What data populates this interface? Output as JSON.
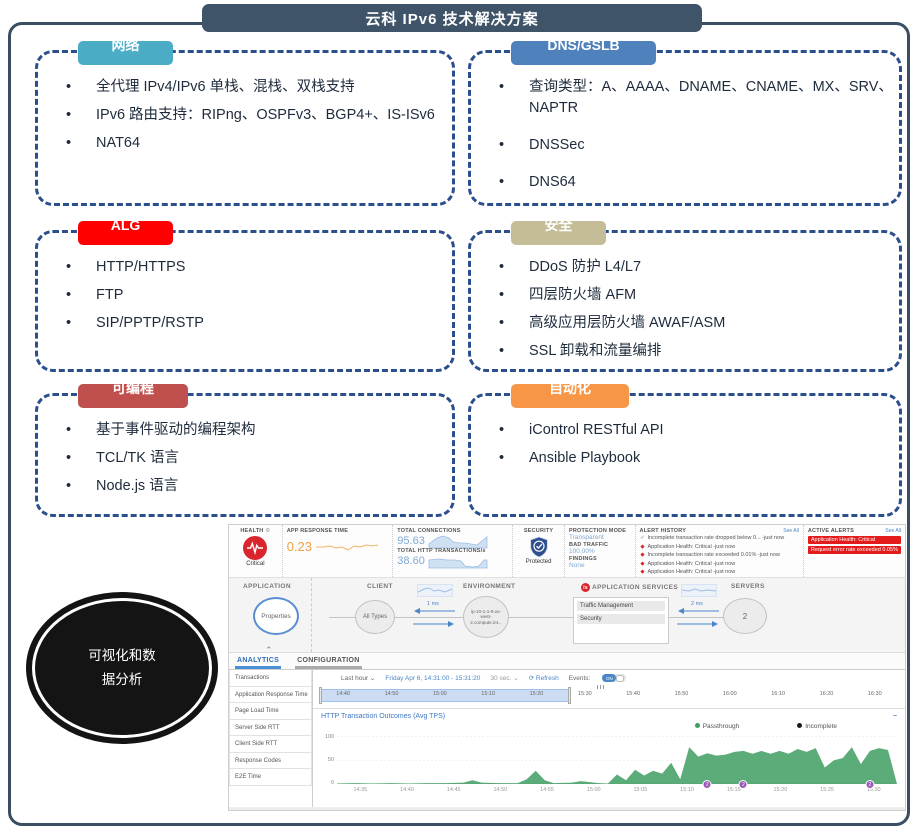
{
  "slide": {
    "title": "云科 IPv6 技术解决方案"
  },
  "boxes": [
    {
      "label": "网络",
      "color": "#4BACC6",
      "items": [
        "全代理 IPv4/IPv6 单栈、混栈、双栈支持",
        "IPv6 路由支持：RIPng、OSPFv3、BGP4+、IS-ISv6",
        "NAT64"
      ]
    },
    {
      "label": "DNS/GSLB",
      "color": "#4F81BD",
      "items": [
        "查询类型：A、AAAA、DNAME、CNAME、MX、SRV、NAPTR",
        "DNSSec",
        "DNS64"
      ]
    },
    {
      "label": "ALG",
      "color": "#FF0000",
      "items": [
        "HTTP/HTTPS",
        "FTP",
        "SIP/PPTP/RSTP"
      ]
    },
    {
      "label": "安全",
      "color": "#C4BD97",
      "items": [
        "DDoS 防护 L4/L7",
        "四层防火墙 AFM",
        "高级应用层防火墙 AWAF/ASM",
        "SSL 卸载和流量编排"
      ]
    },
    {
      "label": "可编程",
      "color": "#C0504D",
      "items": [
        "基于事件驱动的编程架构",
        "TCL/TK 语言",
        "Node.js 语言"
      ]
    },
    {
      "label": "自动化",
      "color": "#F79646",
      "items": [
        "iControl RESTful API",
        "Ansible Playbook"
      ]
    }
  ],
  "ellipse": {
    "text": "可视化和数据分析"
  },
  "dashboard": {
    "health": {
      "label": "HEALTH",
      "status": "Critical"
    },
    "app_response_time": {
      "label": "APP RESPONSE TIME",
      "value": "0.23"
    },
    "connections": {
      "label": "TOTAL CONNECTIONS",
      "value": "95.63"
    },
    "http_tps": {
      "label": "TOTAL HTTP TRANSACTIONS/s",
      "value": "38.60"
    },
    "security": {
      "label": "SECURITY",
      "status": "Protected"
    },
    "protection": {
      "mode_label": "PROTECTION MODE",
      "mode": "Transparent",
      "bad_traffic_label": "BAD TRAFFIC",
      "bad_traffic": "100.00%",
      "findings_label": "FINDINGS",
      "findings": "None"
    },
    "alert_history": {
      "title": "ALERT HISTORY",
      "see_all": "See All",
      "items": [
        {
          "icon": "✓",
          "cls": "ok",
          "text": "Incomplete transaction rate dropped below 0... -just now"
        },
        {
          "icon": "◆",
          "cls": "bad",
          "text": "Application Health: Critical -just now"
        },
        {
          "icon": "◆",
          "cls": "bad",
          "text": "Incomplete transaction rate exceeded 0.01% -just now"
        },
        {
          "icon": "◆",
          "cls": "bad",
          "text": "Application Health: Critical -just now"
        },
        {
          "icon": "◆",
          "cls": "bad",
          "text": "Application Health: Critical -just now"
        }
      ]
    },
    "active_alerts": {
      "title": "ACTIVE ALERTS",
      "see_all": "See All",
      "items": [
        "Application Health: Critical",
        "Request error rate exceeded 0.05%"
      ]
    },
    "topology": {
      "application": {
        "header": "APPLICATION",
        "node": "Properties"
      },
      "client": {
        "header": "CLIENT",
        "node": "All Types"
      },
      "latency_client": "1 ms",
      "environment": {
        "header": "ENVIRONMENT",
        "node": "ip-10-1-1-9.us-west-2.compute.int..."
      },
      "services": {
        "header": "APPLICATION SERVICES",
        "logo": "f5",
        "rows": [
          "Traffic Management",
          "Security"
        ]
      },
      "latency_server": "2 ms",
      "servers": {
        "header": "SERVERS",
        "node": "2"
      }
    },
    "tabs": [
      "ANALYTICS",
      "CONFIGURATION"
    ],
    "sidebar": [
      "Transactions",
      "Application Response Time",
      "Page Load Time",
      "Server Side RTT",
      "Client Side RTT",
      "Response Codes",
      "E2E Time"
    ],
    "toolbar": {
      "range": "Last hour",
      "date": "Friday Apr 6, 14:31:00 - 15:31:20",
      "interval": "30 sec.",
      "refresh": "Refresh",
      "events_label": "Events:",
      "events_state": "ON"
    },
    "timeline_ticks": [
      "14:40",
      "14:50",
      "15:00",
      "15:10",
      "15:20",
      "15:30",
      "15:40",
      "15:50",
      "16:00",
      "16:10",
      "16:20",
      "16:30"
    ]
  },
  "chart_data": {
    "type": "area",
    "title": "HTTP Transaction Outcomes (Avg TPS)",
    "xlabel": "",
    "ylabel": "",
    "ylim": [
      0,
      110
    ],
    "yticks": [
      0,
      50,
      100
    ],
    "x_start": "14:31",
    "x_end": "15:33",
    "xticks": [
      "14:35",
      "14:40",
      "14:45",
      "14:50",
      "14:55",
      "15:00",
      "15:05",
      "15:10",
      "15:15",
      "15:20",
      "15:25",
      "15:30"
    ],
    "grid": true,
    "legend_position": "top-right",
    "series": [
      {
        "name": "Passthrough",
        "color": "#3F9E63",
        "points": [
          [
            "14:31",
            1
          ],
          [
            "14:33",
            2
          ],
          [
            "14:35",
            1
          ],
          [
            "14:37",
            2
          ],
          [
            "14:39",
            1
          ],
          [
            "14:41",
            2
          ],
          [
            "14:43",
            2
          ],
          [
            "14:45",
            3
          ],
          [
            "14:46",
            8
          ],
          [
            "14:47",
            3
          ],
          [
            "14:49",
            2
          ],
          [
            "14:51",
            2
          ],
          [
            "14:52",
            10
          ],
          [
            "14:53",
            28
          ],
          [
            "14:54",
            8
          ],
          [
            "14:55",
            2
          ],
          [
            "14:57",
            3
          ],
          [
            "14:58",
            6
          ],
          [
            "14:59",
            4
          ],
          [
            "15:00",
            2
          ],
          [
            "15:01",
            1
          ],
          [
            "15:02",
            20
          ],
          [
            "15:03",
            8
          ],
          [
            "15:04",
            30
          ],
          [
            "15:05",
            18
          ],
          [
            "15:06",
            28
          ],
          [
            "15:07",
            22
          ],
          [
            "15:08",
            45
          ],
          [
            "15:09",
            10
          ],
          [
            "15:10",
            78
          ],
          [
            "15:11",
            58
          ],
          [
            "15:12",
            65
          ],
          [
            "15:13",
            60
          ],
          [
            "15:14",
            62
          ],
          [
            "15:15",
            68
          ],
          [
            "15:16",
            70
          ],
          [
            "15:17",
            64
          ],
          [
            "15:18",
            70
          ],
          [
            "15:19",
            64
          ],
          [
            "15:20",
            70
          ],
          [
            "15:21",
            64
          ],
          [
            "15:22",
            74
          ],
          [
            "15:23",
            68
          ],
          [
            "15:24",
            76
          ],
          [
            "15:25",
            35
          ],
          [
            "15:26",
            50
          ],
          [
            "15:27",
            55
          ],
          [
            "15:28",
            78
          ],
          [
            "15:29",
            42
          ],
          [
            "15:30",
            70
          ],
          [
            "15:31",
            76
          ],
          [
            "15:32",
            72
          ]
        ]
      },
      {
        "name": "Incomplete",
        "color": "#1A1A1A",
        "points": [
          [
            "14:31",
            0
          ],
          [
            "15:32",
            0
          ]
        ]
      }
    ],
    "events": [
      {
        "time": "15:12",
        "label": "2"
      },
      {
        "time": "15:16",
        "label": "2"
      },
      {
        "time": "15:30",
        "label": "2"
      }
    ]
  }
}
